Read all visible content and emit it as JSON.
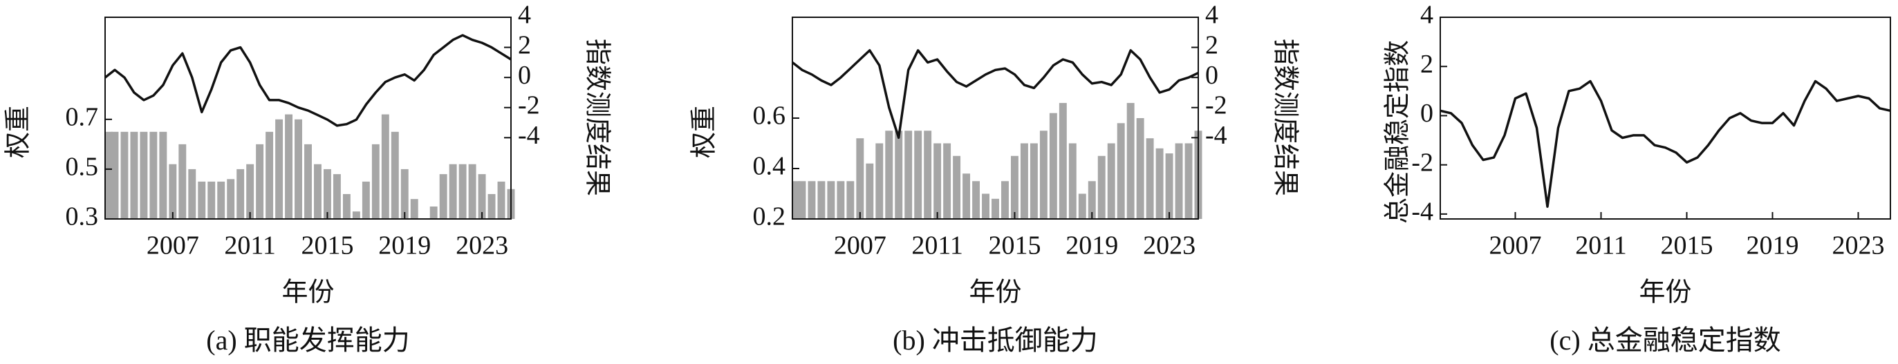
{
  "chart_data": [
    {
      "type": "combo",
      "title": "(a) 职能发挥能力",
      "x_label": "年份",
      "y_label": "权重",
      "y2_label": "指数测度结果",
      "x": [
        2003.5,
        2004,
        2004.5,
        2005,
        2005.5,
        2006,
        2006.5,
        2007,
        2007.5,
        2008,
        2008.5,
        2009,
        2009.5,
        2010,
        2010.5,
        2011,
        2011.5,
        2012,
        2012.5,
        2013,
        2013.5,
        2014,
        2014.5,
        2015,
        2015.5,
        2016,
        2016.5,
        2017,
        2017.5,
        2018,
        2018.5,
        2019,
        2019.5,
        2020,
        2020.5,
        2021,
        2021.5,
        2022,
        2022.5,
        2023,
        2023.5,
        2024,
        2024.5
      ],
      "xlim": [
        2003.5,
        2024.5
      ],
      "xticks": [
        2007,
        2011,
        2015,
        2019,
        2023
      ],
      "ylim": [
        0.3,
        1.11
      ],
      "yticks": [
        0.3,
        0.5,
        0.7
      ],
      "y2lim": [
        -9.4,
        4
      ],
      "y2ticks": [
        -4,
        -2,
        0,
        2,
        4
      ],
      "series": [
        {
          "mark": "bar",
          "color": "#a6a6a6",
          "values": [
            0.65,
            0.65,
            0.65,
            0.65,
            0.65,
            0.65,
            0.65,
            0.52,
            0.6,
            0.5,
            0.45,
            0.45,
            0.45,
            0.46,
            0.5,
            0.52,
            0.6,
            0.65,
            0.7,
            0.72,
            0.7,
            0.6,
            0.52,
            0.5,
            0.48,
            0.4,
            0.33,
            0.45,
            0.6,
            0.72,
            0.65,
            0.5,
            0.38,
            0.3,
            0.35,
            0.48,
            0.52,
            0.52,
            0.52,
            0.48,
            0.4,
            0.45,
            0.42
          ]
        },
        {
          "mark": "line",
          "axis": "y2",
          "color": "#111111",
          "values": [
            0.0,
            0.5,
            0.0,
            -1.0,
            -1.5,
            -1.2,
            -0.5,
            0.8,
            1.6,
            0.0,
            -2.3,
            -0.8,
            1.0,
            1.8,
            2.0,
            1.0,
            -0.5,
            -1.5,
            -1.5,
            -1.7,
            -2.0,
            -2.2,
            -2.5,
            -2.8,
            -3.2,
            -3.1,
            -2.8,
            -1.8,
            -1.0,
            -0.3,
            0.0,
            0.2,
            -0.2,
            0.5,
            1.5,
            2.0,
            2.5,
            2.8,
            2.5,
            2.3,
            2.0,
            1.6,
            1.2
          ]
        }
      ]
    },
    {
      "type": "combo",
      "title": "(b) 冲击抵御能力",
      "x_label": "年份",
      "y_label": "权重",
      "y2_label": "指数测度结果",
      "x": [
        2003.5,
        2004,
        2004.5,
        2005,
        2005.5,
        2006,
        2006.5,
        2007,
        2007.5,
        2008,
        2008.5,
        2009,
        2009.5,
        2010,
        2010.5,
        2011,
        2011.5,
        2012,
        2012.5,
        2013,
        2013.5,
        2014,
        2014.5,
        2015,
        2015.5,
        2016,
        2016.5,
        2017,
        2017.5,
        2018,
        2018.5,
        2019,
        2019.5,
        2020,
        2020.5,
        2021,
        2021.5,
        2022,
        2022.5,
        2023,
        2023.5,
        2024,
        2024.5
      ],
      "xlim": [
        2003.5,
        2024.5
      ],
      "xticks": [
        2007,
        2011,
        2015,
        2019,
        2023
      ],
      "ylim": [
        0.2,
        1.0
      ],
      "yticks": [
        0.2,
        0.4,
        0.6
      ],
      "y2lim": [
        -9.4,
        4
      ],
      "y2ticks": [
        -4,
        -2,
        0,
        2,
        4
      ],
      "series": [
        {
          "mark": "bar",
          "color": "#a6a6a6",
          "values": [
            0.35,
            0.35,
            0.35,
            0.35,
            0.35,
            0.35,
            0.35,
            0.52,
            0.42,
            0.5,
            0.55,
            0.55,
            0.55,
            0.55,
            0.55,
            0.5,
            0.5,
            0.45,
            0.38,
            0.35,
            0.3,
            0.28,
            0.35,
            0.45,
            0.5,
            0.5,
            0.55,
            0.62,
            0.66,
            0.5,
            0.3,
            0.35,
            0.45,
            0.5,
            0.58,
            0.66,
            0.6,
            0.52,
            0.48,
            0.46,
            0.5,
            0.5,
            0.55
          ]
        },
        {
          "mark": "line",
          "axis": "y2",
          "color": "#111111",
          "values": [
            1.0,
            0.5,
            0.2,
            -0.2,
            -0.5,
            0.0,
            0.6,
            1.2,
            1.8,
            0.8,
            -2.0,
            -4.0,
            0.5,
            1.8,
            1.0,
            1.2,
            0.4,
            -0.3,
            -0.6,
            -0.2,
            0.2,
            0.5,
            0.6,
            0.2,
            -0.5,
            -0.7,
            0.0,
            0.8,
            1.2,
            1.0,
            0.2,
            -0.4,
            -0.3,
            -0.5,
            0.2,
            1.8,
            1.2,
            0.0,
            -1.0,
            -0.8,
            -0.2,
            0.0,
            0.3
          ]
        }
      ]
    },
    {
      "type": "line",
      "title": "(c) 总金融稳定指数",
      "x_label": "年份",
      "y_label": "总金融稳定指数",
      "x": [
        2003.5,
        2004,
        2004.5,
        2005,
        2005.5,
        2006,
        2006.5,
        2007,
        2007.5,
        2008,
        2008.5,
        2009,
        2009.5,
        2010,
        2010.5,
        2011,
        2011.5,
        2012,
        2012.5,
        2013,
        2013.5,
        2014,
        2014.5,
        2015,
        2015.5,
        2016,
        2016.5,
        2017,
        2017.5,
        2018,
        2018.5,
        2019,
        2019.5,
        2020,
        2020.5,
        2021,
        2021.5,
        2022,
        2022.5,
        2023,
        2023.5,
        2024,
        2024.5
      ],
      "xlim": [
        2003.5,
        2024.5
      ],
      "xticks": [
        2007,
        2011,
        2015,
        2019,
        2023
      ],
      "ylim": [
        -4.2,
        4
      ],
      "yticks": [
        -4,
        -2,
        0,
        2,
        4
      ],
      "series": [
        {
          "mark": "line",
          "color": "#111111",
          "values": [
            0.2,
            0.1,
            -0.3,
            -1.2,
            -1.8,
            -1.7,
            -0.8,
            0.7,
            0.9,
            -0.5,
            -3.7,
            -0.5,
            1.0,
            1.1,
            1.4,
            0.6,
            -0.6,
            -0.9,
            -0.8,
            -0.8,
            -1.2,
            -1.3,
            -1.5,
            -1.9,
            -1.7,
            -1.2,
            -0.6,
            -0.1,
            0.1,
            -0.2,
            -0.3,
            -0.3,
            0.1,
            -0.4,
            0.6,
            1.4,
            1.1,
            0.6,
            0.7,
            0.8,
            0.7,
            0.3,
            0.2
          ]
        }
      ]
    }
  ]
}
